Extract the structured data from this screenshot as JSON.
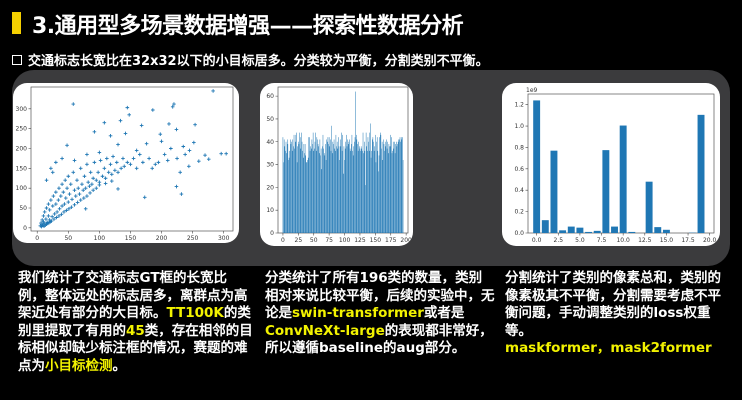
{
  "header": {
    "title": "3.通用型多场景数据增强——探索性数据分析",
    "subtitle": "交通标志长宽比在32x32以下的小目标居多。分类较为平衡，分割类别不平衡。",
    "accent": "#f5d000",
    "highlight": "#f2f200"
  },
  "columns": [
    {
      "parts": [
        {
          "t": "我们统计了交通标志GT框的长宽比例，整体远处的标志居多，离群点为高架近处有部分的大目标。",
          "h": false
        },
        {
          "t": "TT100K",
          "h": true
        },
        {
          "t": "的类别里提取了有用的",
          "h": false
        },
        {
          "t": "45",
          "h": true
        },
        {
          "t": "类，存在相邻的目标相似却缺少标注框的情况，赛题的难点为",
          "h": false
        },
        {
          "t": "小目标检测",
          "h": true
        },
        {
          "t": "。",
          "h": false
        }
      ]
    },
    {
      "parts": [
        {
          "t": "分类统计了所有196类的数量，类别相对来说比较平衡，后续的实验中，无论是",
          "h": false
        },
        {
          "t": "swin-transformer",
          "h": true
        },
        {
          "t": "或者是",
          "h": false
        },
        {
          "t": "ConvNeXt-large",
          "h": true
        },
        {
          "t": "的表现都非常好，所以遵循baseline的aug部分。",
          "h": false
        }
      ]
    },
    {
      "parts": [
        {
          "t": "分割统计了类别的像素总和，类别的像素极其不平衡，分割需要考虑不平衡问题，手动调整类别的loss权重等。",
          "h": false
        },
        {
          "t": "\nmaskformer，mask2former",
          "h": true
        }
      ]
    }
  ],
  "chart_data": [
    {
      "type": "scatter",
      "marker": "+",
      "color": "#1f77b4",
      "xlim": [
        -10,
        315
      ],
      "ylim": [
        -8,
        355
      ],
      "xticks": [
        0,
        50,
        100,
        150,
        200,
        250,
        300
      ],
      "yticks": [
        0,
        50,
        100,
        150,
        200,
        250,
        300
      ],
      "points": [
        [
          283,
          345
        ],
        [
          58,
          312
        ],
        [
          145,
          303
        ],
        [
          148,
          285
        ],
        [
          220,
          312
        ],
        [
          218,
          305
        ],
        [
          186,
          297
        ],
        [
          108,
          265
        ],
        [
          134,
          270
        ],
        [
          168,
          258
        ],
        [
          212,
          262
        ],
        [
          254,
          260
        ],
        [
          92,
          242
        ],
        [
          142,
          238
        ],
        [
          224,
          248
        ],
        [
          48,
          208
        ],
        [
          118,
          232
        ],
        [
          198,
          236
        ],
        [
          296,
          187
        ],
        [
          304,
          187
        ],
        [
          270,
          183
        ],
        [
          276,
          173
        ],
        [
          232,
          85
        ],
        [
          173,
          77
        ],
        [
          224,
          104
        ],
        [
          252,
          215
        ],
        [
          238,
          185
        ],
        [
          200,
          218
        ],
        [
          176,
          212
        ],
        [
          260,
          168
        ],
        [
          244,
          155
        ],
        [
          210,
          170
        ],
        [
          190,
          160
        ],
        [
          230,
          140
        ],
        [
          130,
          210
        ],
        [
          160,
          195
        ],
        [
          100,
          190
        ],
        [
          80,
          185
        ],
        [
          60,
          170
        ],
        [
          40,
          175
        ],
        [
          30,
          165
        ],
        [
          22,
          150
        ],
        [
          25,
          140
        ],
        [
          15,
          120
        ],
        [
          5,
          5
        ],
        [
          6,
          12
        ],
        [
          8,
          8
        ],
        [
          8,
          20
        ],
        [
          10,
          15
        ],
        [
          10,
          30
        ],
        [
          12,
          10
        ],
        [
          12,
          40
        ],
        [
          14,
          22
        ],
        [
          15,
          50
        ],
        [
          16,
          14
        ],
        [
          18,
          30
        ],
        [
          18,
          60
        ],
        [
          20,
          20
        ],
        [
          20,
          45
        ],
        [
          22,
          70
        ],
        [
          24,
          28
        ],
        [
          25,
          55
        ],
        [
          26,
          80
        ],
        [
          28,
          35
        ],
        [
          30,
          60
        ],
        [
          30,
          90
        ],
        [
          32,
          40
        ],
        [
          34,
          70
        ],
        [
          35,
          100
        ],
        [
          36,
          48
        ],
        [
          38,
          80
        ],
        [
          40,
          55
        ],
        [
          40,
          110
        ],
        [
          42,
          90
        ],
        [
          44,
          60
        ],
        [
          45,
          120
        ],
        [
          46,
          75
        ],
        [
          48,
          100
        ],
        [
          50,
          65
        ],
        [
          50,
          130
        ],
        [
          52,
          85
        ],
        [
          54,
          110
        ],
        [
          56,
          72
        ],
        [
          58,
          140
        ],
        [
          60,
          95
        ],
        [
          62,
          80
        ],
        [
          64,
          120
        ],
        [
          66,
          100
        ],
        [
          68,
          85
        ],
        [
          70,
          150
        ],
        [
          72,
          110
        ],
        [
          74,
          95
        ],
        [
          76,
          130
        ],
        [
          78,
          100
        ],
        [
          80,
          160
        ],
        [
          82,
          115
        ],
        [
          84,
          105
        ],
        [
          86,
          140
        ],
        [
          88,
          110
        ],
        [
          90,
          125
        ],
        [
          92,
          165
        ],
        [
          95,
          120
        ],
        [
          98,
          140
        ],
        [
          100,
          115
        ],
        [
          102,
          170
        ],
        [
          105,
          130
        ],
        [
          108,
          150
        ],
        [
          110,
          125
        ],
        [
          112,
          175
        ],
        [
          115,
          140
        ],
        [
          118,
          160
        ],
        [
          120,
          135
        ],
        [
          122,
          180
        ],
        [
          125,
          145
        ],
        [
          128,
          165
        ],
        [
          130,
          140
        ],
        [
          135,
          150
        ],
        [
          138,
          175
        ],
        [
          140,
          155
        ],
        [
          145,
          165
        ],
        [
          150,
          160
        ],
        [
          155,
          175
        ],
        [
          160,
          150
        ],
        [
          165,
          185
        ],
        [
          170,
          165
        ],
        [
          180,
          175
        ],
        [
          185,
          150
        ],
        [
          195,
          165
        ],
        [
          205,
          185
        ],
        [
          215,
          200
        ],
        [
          225,
          175
        ],
        [
          235,
          205
        ],
        [
          245,
          195
        ],
        [
          7,
          3
        ],
        [
          9,
          6
        ],
        [
          11,
          4
        ],
        [
          13,
          7
        ],
        [
          15,
          9
        ],
        [
          17,
          11
        ],
        [
          19,
          13
        ],
        [
          21,
          15
        ],
        [
          23,
          17
        ],
        [
          27,
          22
        ],
        [
          31,
          26
        ],
        [
          35,
          30
        ],
        [
          39,
          34
        ],
        [
          43,
          40
        ],
        [
          47,
          44
        ],
        [
          51,
          48
        ],
        [
          55,
          52
        ],
        [
          60,
          58
        ],
        [
          65,
          64
        ],
        [
          70,
          70
        ],
        [
          75,
          75
        ],
        [
          80,
          80
        ],
        [
          85,
          88
        ],
        [
          90,
          95
        ],
        [
          95,
          100
        ],
        [
          100,
          108
        ],
        [
          110,
          112
        ],
        [
          120,
          118
        ],
        [
          78,
          48
        ],
        [
          130,
          98
        ]
      ]
    },
    {
      "type": "bar",
      "color": "#1f77b4",
      "xlim": [
        -8,
        203
      ],
      "ylim": [
        0,
        64
      ],
      "xticks": [
        0,
        25,
        50,
        75,
        100,
        125,
        150,
        175,
        200
      ],
      "yticks": [
        0,
        10,
        20,
        30,
        40,
        50,
        60
      ],
      "values": [
        42,
        31,
        41,
        38,
        36,
        40,
        35,
        41,
        39,
        32,
        33,
        36,
        41,
        39,
        40,
        36,
        41,
        38,
        43,
        37,
        40,
        43,
        44,
        31,
        38,
        40,
        39,
        44,
        42,
        37,
        44,
        40,
        36,
        33,
        39,
        35,
        39,
        34,
        31,
        31,
        32,
        33,
        42,
        42,
        36,
        38,
        37,
        41,
        39,
        44,
        36,
        37,
        40,
        44,
        36,
        42,
        41,
        39,
        38,
        35,
        41,
        34,
        37,
        28,
        38,
        43,
        37,
        35,
        34,
        39,
        32,
        41,
        40,
        42,
        39,
        42,
        38,
        41,
        36,
        47,
        35,
        40,
        39,
        41,
        37,
        36,
        43,
        38,
        40,
        37,
        42,
        38,
        32,
        41,
        38,
        44,
        36,
        43,
        26,
        38,
        32,
        37,
        40,
        43,
        38,
        41,
        39,
        40,
        41,
        37,
        36,
        39,
        43,
        36,
        34,
        38,
        40,
        42,
        62,
        43,
        41,
        39,
        36,
        40,
        38,
        37,
        36,
        38,
        37,
        36,
        44,
        35,
        40,
        36,
        21,
        44,
        38,
        36,
        42,
        40,
        36,
        44,
        48,
        33,
        36,
        41,
        42,
        40,
        36,
        38,
        43,
        31,
        40,
        42,
        36,
        27,
        34,
        42,
        44,
        43,
        37,
        40,
        32,
        41,
        39,
        36,
        40,
        38,
        41,
        37,
        40,
        35,
        39,
        38,
        38,
        43,
        42,
        35,
        36,
        40,
        37,
        40,
        35,
        39,
        40,
        38,
        39,
        40,
        41,
        41,
        42,
        40,
        42,
        41,
        42,
        32
      ]
    },
    {
      "type": "bar",
      "color": "#1f77b4",
      "offset_label": "1e9",
      "xlim": [
        -1,
        20.5
      ],
      "ylim": [
        0,
        1.3
      ],
      "xticks": [
        "0.0",
        "2.5",
        "5.0",
        "7.5",
        "10.0",
        "12.5",
        "15.0",
        "17.5",
        "20.0"
      ],
      "yticks": [
        "0.0",
        "0.2",
        "0.4",
        "0.6",
        "0.8",
        "1.0",
        "1.2"
      ],
      "values": [
        1.24,
        0.12,
        0.77,
        0.025,
        0.06,
        0.05,
        0.01,
        0.02,
        0.775,
        0.06,
        1.005,
        0.01,
        0,
        0.48,
        0.055,
        0.03,
        0,
        0,
        0.003,
        1.105
      ]
    }
  ]
}
